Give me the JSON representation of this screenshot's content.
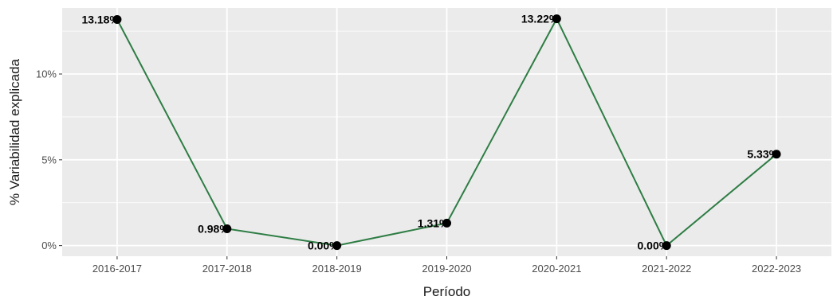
{
  "chart_data": {
    "type": "line",
    "title": "",
    "xlabel": "Período",
    "ylabel": "% Variabilidad explicada",
    "categories": [
      "2016-2017",
      "2017-2018",
      "2018-2019",
      "2019-2020",
      "2020-2021",
      "2021-2022",
      "2022-2023"
    ],
    "values": [
      13.18,
      0.98,
      0.0,
      1.31,
      13.22,
      0.0,
      5.33
    ],
    "data_labels": [
      "13.18%",
      "0.98%",
      "0.00%",
      "1.31%",
      "13.22%",
      "0.00%",
      "5.33%"
    ],
    "yticks": [
      0,
      5,
      10
    ],
    "ytick_labels": [
      "0%",
      "5%",
      "10%"
    ],
    "ylim": [
      -0.62,
      13.85
    ],
    "grid": true,
    "colors": {
      "line": "#2e7d44",
      "points": "#000000",
      "panel": "#ebebeb",
      "grid": "#ffffff"
    }
  }
}
